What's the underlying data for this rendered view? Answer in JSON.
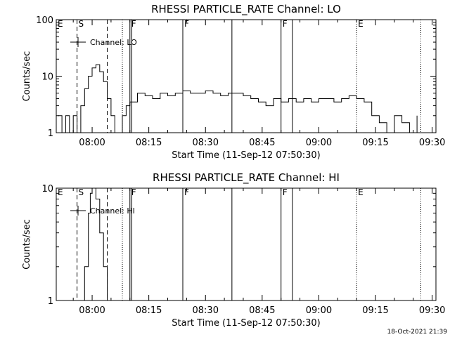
{
  "chart_data": [
    {
      "type": "line",
      "title": "RHESSI PARTICLE_RATE Channel: LO",
      "xlabel": "Start Time (11-Sep-12 07:50:30)",
      "ylabel": "Counts/sec",
      "yscale": "log",
      "ylim": [
        1,
        100
      ],
      "ytick_labels": [
        "1",
        "10",
        "100"
      ],
      "xlim": [
        "07:50:30",
        "09:31:00"
      ],
      "xtick_labels": [
        "08:00",
        "08:15",
        "08:30",
        "08:45",
        "09:00",
        "09:15",
        "09:30"
      ],
      "legend": "Channel: LO",
      "legend_position": "top-left",
      "grid": false,
      "series": [
        {
          "name": "Channel: LO",
          "x": [
            "07:51:00",
            "07:52:00",
            "07:53:00",
            "07:54:00",
            "07:55:00",
            "07:56:00",
            "07:57:00",
            "07:58:00",
            "07:59:00",
            "08:00:00",
            "08:01:00",
            "08:02:00",
            "08:03:00",
            "08:04:00",
            "08:05:00",
            "08:06:00",
            "08:07:00",
            "08:08:00",
            "08:09:00",
            "08:10:00",
            "08:12:00",
            "08:14:00",
            "08:16:00",
            "08:18:00",
            "08:20:00",
            "08:22:00",
            "08:24:00",
            "08:26:00",
            "08:28:00",
            "08:30:00",
            "08:32:00",
            "08:34:00",
            "08:36:00",
            "08:38:00",
            "08:40:00",
            "08:42:00",
            "08:44:00",
            "08:46:00",
            "08:48:00",
            "08:50:00",
            "08:52:00",
            "08:54:00",
            "08:56:00",
            "08:58:00",
            "09:00:00",
            "09:02:00",
            "09:04:00",
            "09:06:00",
            "09:08:00",
            "09:10:00",
            "09:12:00",
            "09:14:00",
            "09:16:00",
            "09:18:00",
            "09:20:00",
            "09:22:00",
            "09:24:00",
            "09:26:00"
          ],
          "y": [
            2,
            1,
            2,
            1,
            2,
            1,
            3,
            6,
            10,
            14,
            16,
            12,
            8,
            4,
            2,
            1,
            1,
            2,
            3,
            3.5,
            5,
            4.5,
            4,
            5,
            4.5,
            5,
            5.5,
            5,
            5,
            5.5,
            5,
            4.5,
            5,
            5,
            4.5,
            4,
            3.5,
            3,
            4,
            3.5,
            4,
            3.5,
            4,
            3.5,
            4,
            4,
            3.5,
            4,
            4.5,
            4,
            3.5,
            2,
            1.5,
            1,
            2,
            1.5,
            1,
            2
          ]
        }
      ],
      "annotations": [
        {
          "label": "E",
          "x": "07:50:30",
          "style": "solid"
        },
        {
          "label": "S",
          "x": "07:56:00",
          "style": "dashed"
        },
        {
          "label": "",
          "x": "08:04:00",
          "style": "dashed"
        },
        {
          "label": "",
          "x": "08:08:00",
          "style": "dotted"
        },
        {
          "label": "F",
          "x": "08:10:00",
          "style": "solid"
        },
        {
          "label": "",
          "x": "08:10:30",
          "style": "solid"
        },
        {
          "label": "F",
          "x": "08:24:00",
          "style": "solid"
        },
        {
          "label": "",
          "x": "08:37:00",
          "style": "solid"
        },
        {
          "label": "F",
          "x": "08:50:00",
          "style": "solid"
        },
        {
          "label": "",
          "x": "08:53:00",
          "style": "solid"
        },
        {
          "label": "E",
          "x": "09:10:00",
          "style": "dotted"
        },
        {
          "label": "",
          "x": "09:27:00",
          "style": "dotted"
        }
      ]
    },
    {
      "type": "line",
      "title": "RHESSI PARTICLE_RATE Channel: HI",
      "xlabel": "Start Time (11-Sep-12 07:50:30)",
      "ylabel": "Counts/sec",
      "yscale": "log",
      "ylim": [
        1,
        10
      ],
      "ytick_labels": [
        "1",
        "10"
      ],
      "xlim": [
        "07:50:30",
        "09:31:00"
      ],
      "xtick_labels": [
        "08:00",
        "08:15",
        "08:30",
        "08:45",
        "09:00",
        "09:15",
        "09:30"
      ],
      "legend": "Channel: HI",
      "legend_position": "top-left",
      "grid": false,
      "series": [
        {
          "name": "Channel: HI",
          "x": [
            "07:57:00",
            "07:58:00",
            "07:59:00",
            "07:59:30",
            "08:00:00",
            "08:00:30",
            "08:01:00",
            "08:02:00",
            "08:03:00",
            "08:04:00"
          ],
          "y": [
            1,
            2,
            6,
            9,
            10,
            10,
            8,
            4,
            2,
            1
          ]
        }
      ],
      "annotations": [
        {
          "label": "E",
          "x": "07:50:30",
          "style": "solid"
        },
        {
          "label": "S",
          "x": "07:56:00",
          "style": "dashed"
        },
        {
          "label": "",
          "x": "08:04:00",
          "style": "dashed"
        },
        {
          "label": "",
          "x": "08:08:00",
          "style": "dotted"
        },
        {
          "label": "F",
          "x": "08:10:00",
          "style": "solid"
        },
        {
          "label": "",
          "x": "08:10:30",
          "style": "solid"
        },
        {
          "label": "F",
          "x": "08:24:00",
          "style": "solid"
        },
        {
          "label": "",
          "x": "08:37:00",
          "style": "solid"
        },
        {
          "label": "F",
          "x": "08:50:00",
          "style": "solid"
        },
        {
          "label": "",
          "x": "08:53:00",
          "style": "solid"
        },
        {
          "label": "E",
          "x": "09:10:00",
          "style": "dotted"
        },
        {
          "label": "",
          "x": "09:27:00",
          "style": "dotted"
        }
      ]
    }
  ],
  "footer": {
    "timestamp": "18-Oct-2021 21:39"
  }
}
